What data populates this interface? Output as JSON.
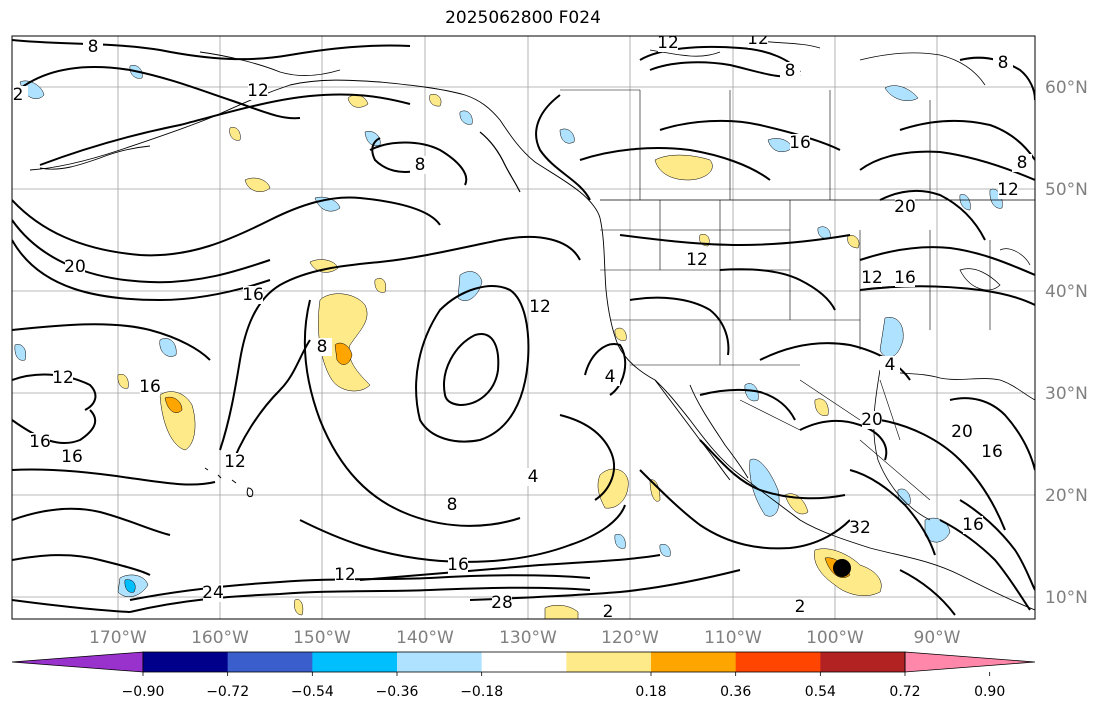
{
  "title": "2025062800 F024",
  "lon_labels": [
    "170°W",
    "160°W",
    "150°W",
    "140°W",
    "130°W",
    "120°W",
    "110°W",
    "100°W",
    "90°W"
  ],
  "lat_labels": [
    "60°N",
    "50°N",
    "40°N",
    "30°N",
    "20°N",
    "10°N"
  ],
  "colorbar": {
    "colors": [
      "#9932cc",
      "#00008b",
      "#3a5fcd",
      "#00bfff",
      "#aee2ff",
      "#ffffff",
      "#ffea8a",
      "#ffa500",
      "#ff4500",
      "#b22222",
      "#ff88aa"
    ],
    "tick_labels": [
      "−0.90",
      "−0.72",
      "−0.54",
      "−0.36",
      "−0.18",
      "0.18",
      "0.36",
      "0.54",
      "0.72",
      "0.90"
    ]
  },
  "contour_labels": [
    "12",
    "12",
    "8",
    "12",
    "16",
    "8",
    "20",
    "16",
    "12",
    "8",
    "12",
    "16",
    "12",
    "16",
    "20",
    "12",
    "16",
    "4",
    "12",
    "16",
    "12",
    "24",
    "12",
    "16",
    "28",
    "32",
    "20",
    "20",
    "16",
    "16",
    "4",
    "8",
    "8",
    "8",
    "8",
    "2",
    "2",
    "2",
    "4"
  ],
  "marker": "storm-center-dot"
}
